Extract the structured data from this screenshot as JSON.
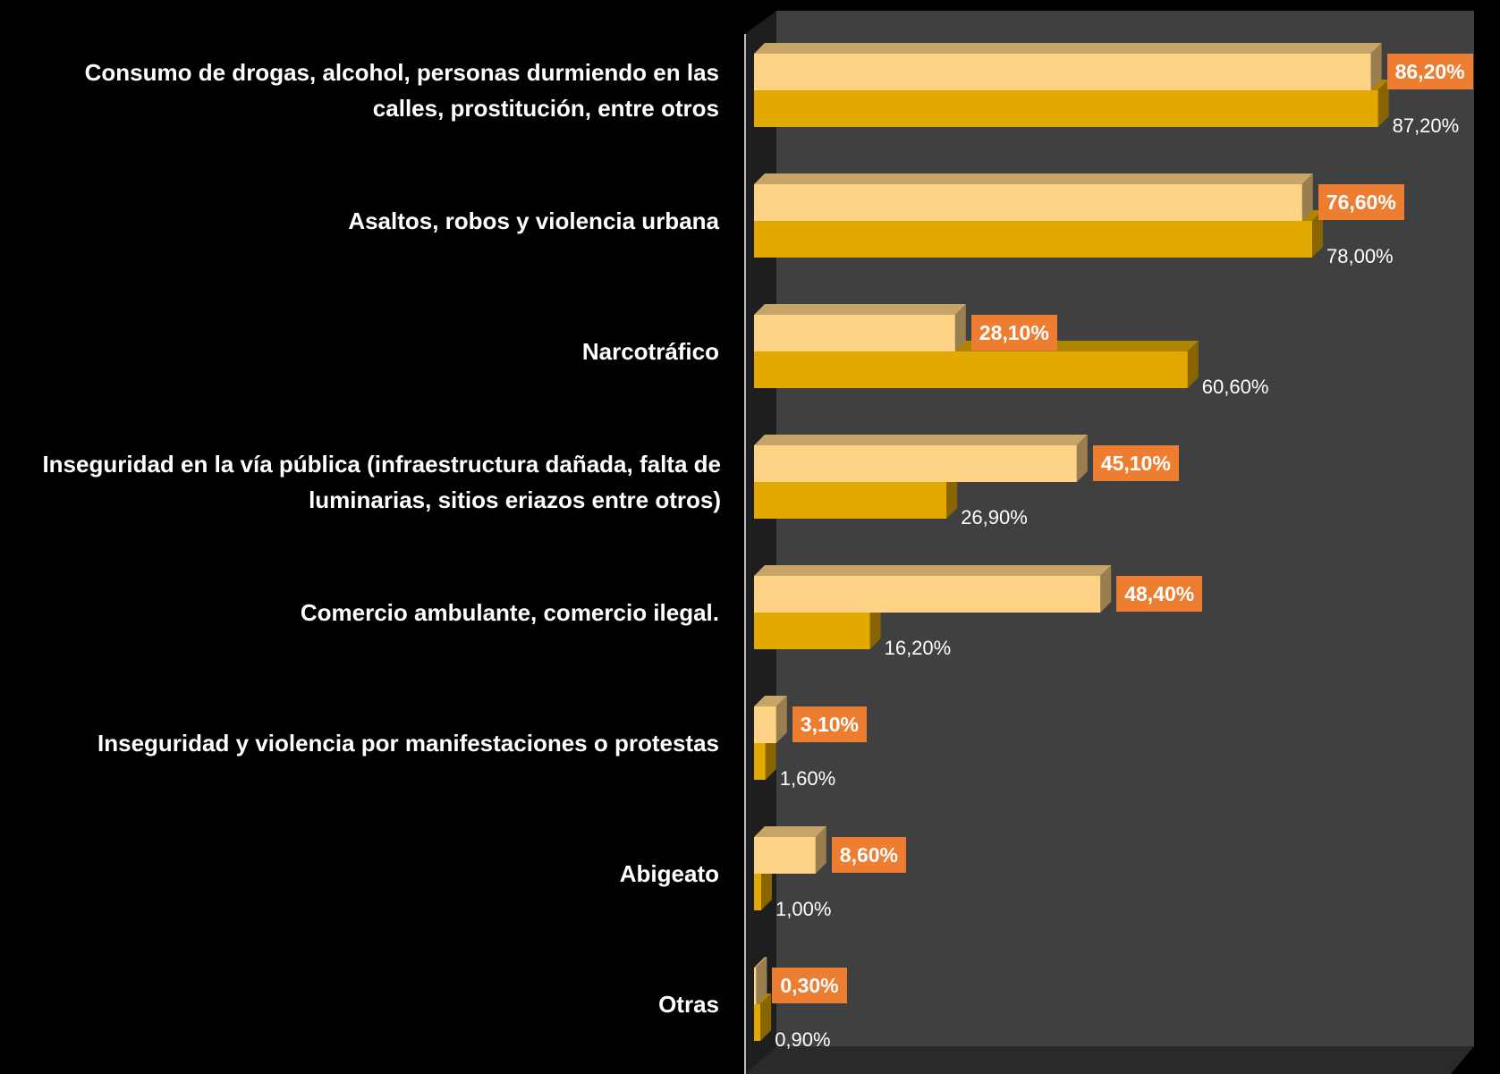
{
  "chart_data": {
    "type": "bar",
    "orientation": "horizontal",
    "style": "3d-clustered",
    "xlim": [
      0,
      100
    ],
    "grid": false,
    "legend": "none",
    "categories": [
      "Consumo de drogas, alcohol, personas durmiendo en las calles, prostitución, entre otros",
      "Asaltos, robos  y violencia urbana",
      "Narcotráfico",
      "Inseguridad en la vía pública (infraestructura dañada, falta de luminarias, sitios eriazos entre otros)",
      "Comercio ambulante, comercio ilegal.",
      "Inseguridad y violencia por manifestaciones o protestas",
      "Abigeato",
      "Otras"
    ],
    "series": [
      {
        "values": [
          86.2,
          76.6,
          28.1,
          45.1,
          48.4,
          3.1,
          8.6,
          0.3
        ],
        "labels": [
          "86,20%",
          "76,60%",
          "28,10%",
          "45,10%",
          "48,40%",
          "3,10%",
          "8,60%",
          "0,30%"
        ],
        "color": "#FFD386",
        "label_color": "#ED7D31"
      },
      {
        "values": [
          87.2,
          78.0,
          60.6,
          26.9,
          16.2,
          1.6,
          1.0,
          0.9
        ],
        "labels": [
          "87,20%",
          "78,00%",
          "60,60%",
          "26,90%",
          "16,20%",
          "1,60%",
          "1,00%",
          "0,90%"
        ],
        "color": "#E2A900"
      }
    ],
    "colors": {
      "background": "#000000",
      "plot_wall": "#404040",
      "plot_wall_side": "#1E1E1E",
      "text": "#FFFFFF"
    }
  }
}
